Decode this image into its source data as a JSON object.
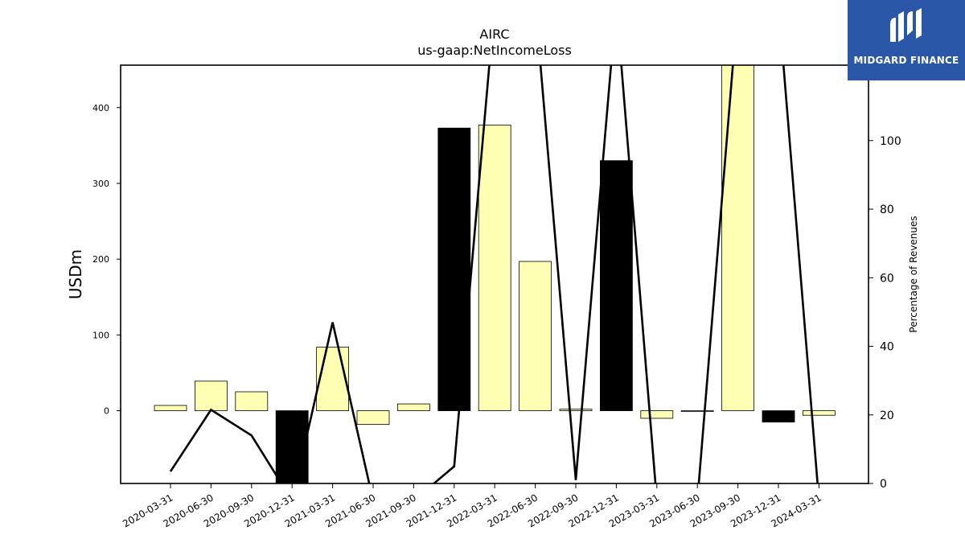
{
  "chart_data": {
    "type": "bar",
    "title": "AIRC",
    "subtitle": "us-gaap:NetIncomeLoss",
    "ylabel": "USDm",
    "y2label": "Percentage of Revenues",
    "ylim": [
      -96,
      456
    ],
    "y2lim": [
      0,
      122
    ],
    "yticks": [
      0,
      100,
      200,
      300,
      400
    ],
    "y2ticks": [
      0,
      20,
      40,
      60,
      80,
      100
    ],
    "categories": [
      "2020-03-31",
      "2020-06-30",
      "2020-09-30",
      "2020-12-31",
      "2021-03-31",
      "2021-06-30",
      "2021-09-30",
      "2021-12-31",
      "2022-03-31",
      "2022-06-30",
      "2022-09-30",
      "2022-12-31",
      "2023-03-31",
      "2023-06-30",
      "2023-09-30",
      "2023-12-31",
      "2024-03-31"
    ],
    "values": [
      7,
      39,
      25,
      -96,
      84,
      -18,
      9,
      373,
      377,
      197,
      2,
      330,
      -10,
      -1,
      456,
      -15,
      -6
    ],
    "bar_fill": [
      "#ffffb3",
      "#ffffb3",
      "#ffffb3",
      "#000000",
      "#ffffb3",
      "#ffffb3",
      "#ffffb3",
      "#000000",
      "#ffffb3",
      "#ffffb3",
      "#ffffb3",
      "#000000",
      "#ffffb3",
      "#ffffb3",
      "#ffffb3",
      "#000000",
      "#ffffb3"
    ],
    "series": [
      {
        "values": [
          3.5,
          21.5,
          14,
          -5,
          47,
          -5,
          -5,
          5,
          140,
          140,
          1,
          140,
          -5,
          -5,
          140,
          140,
          -5
        ]
      }
    ],
    "grid": false,
    "colors": {
      "positive": "#ffffb3",
      "highlight": "#000000",
      "line": "#000000"
    }
  },
  "logo": {
    "text": "MIDGARD FINANCE"
  }
}
